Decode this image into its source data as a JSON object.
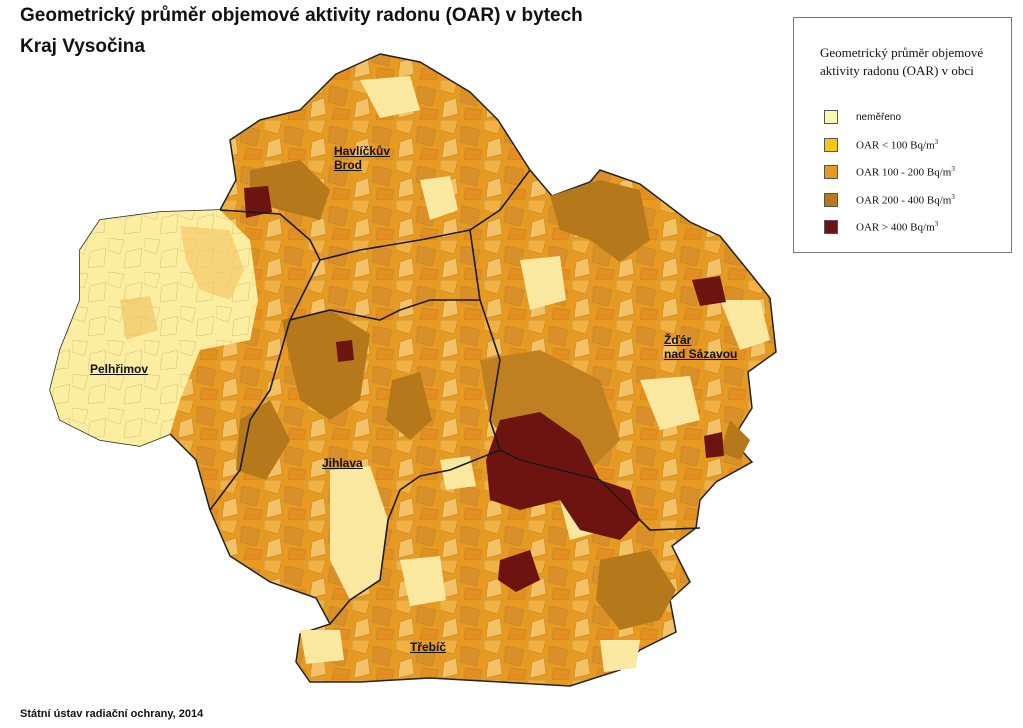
{
  "title": "Geometrický průměr objemové aktivity radonu (OAR) v bytech",
  "subtitle": "Kraj Vysočina",
  "legend": {
    "title": "Geometrický průměr objemové aktivity radonu (OAR) v obci",
    "items": [
      {
        "label": "neměřeno",
        "unit": "",
        "color": "#fdf6b0"
      },
      {
        "label": "OAR  <  100  Bq/m",
        "unit": "3",
        "color": "#f5c518"
      },
      {
        "label": "OAR  100 - 200  Bq/m",
        "unit": "3",
        "color": "#e69a22"
      },
      {
        "label": "OAR  200 - 400  Bq/m",
        "unit": "3",
        "color": "#b5781a"
      },
      {
        "label": "OAR  >  400  Bq/m",
        "unit": "3",
        "color": "#6e1410"
      }
    ]
  },
  "districts": [
    {
      "name": "Havlíčkův Brod"
    },
    {
      "name": "Pelhřimov"
    },
    {
      "name": "Jihlava"
    },
    {
      "name": "Žďár nad Sázavou"
    },
    {
      "name": "Třebíč"
    }
  ],
  "district_lines": [
    [
      "Havlíčkův",
      "Brod"
    ],
    [
      "Žďár",
      "nad Sázavou"
    ]
  ],
  "source": "Státní ústav radiační ochrany, 2014"
}
